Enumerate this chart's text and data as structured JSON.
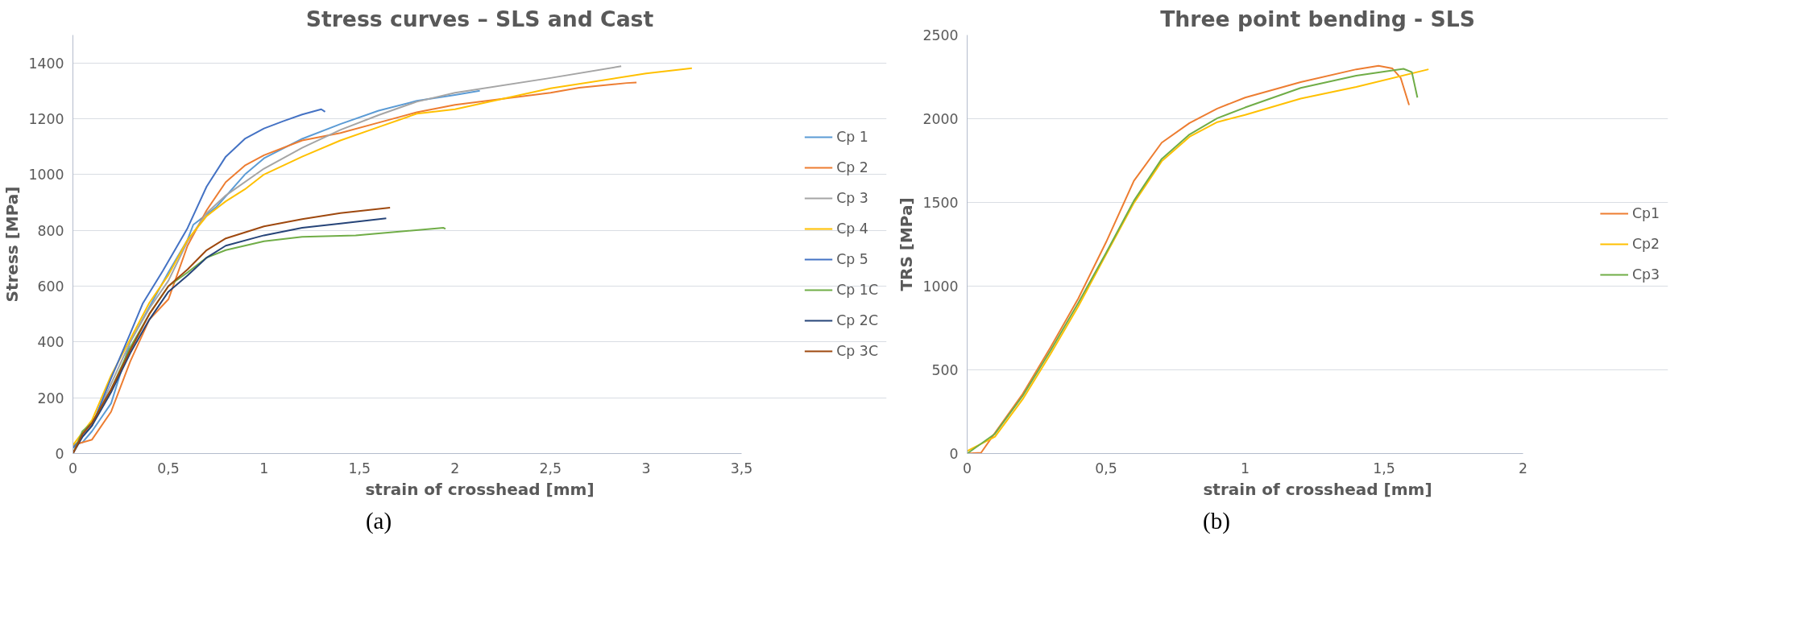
{
  "chart_data": [
    {
      "type": "line",
      "title": "Stress curves – SLS and Cast",
      "xlabel": "strain of crosshead [mm]",
      "ylabel": "Stress [MPa]",
      "annotations": [
        "(a)"
      ],
      "xlim": [
        0,
        3.5
      ],
      "ylim": [
        0,
        1500
      ],
      "xticks": [
        0,
        {
          "value": 0.5,
          "label": "0,5"
        },
        1,
        {
          "value": 1.5,
          "label": "1,5"
        },
        2,
        {
          "value": 2.5,
          "label": "2,5"
        },
        3,
        {
          "value": 3.5,
          "label": "3,5"
        }
      ],
      "yticks": [
        0,
        200,
        400,
        600,
        800,
        1000,
        1200,
        1400
      ],
      "grid": "y",
      "legend": "right",
      "marker": "none",
      "line_style": "solid",
      "series": [
        {
          "name": "Cp 1",
          "color": "#5b9bd5",
          "x": [
            0,
            0.05,
            0.1,
            0.2,
            0.3,
            0.5,
            0.6,
            0.63,
            0.75,
            0.9,
            1.0,
            1.2,
            1.4,
            1.6,
            1.8,
            2.0,
            2.13
          ],
          "values": [
            30,
            40,
            80,
            180,
            400,
            650,
            766,
            820,
            883,
            1000,
            1058,
            1128,
            1181,
            1229,
            1264,
            1285,
            1300
          ]
        },
        {
          "name": "Cp 2",
          "color": "#ed7d31",
          "x": [
            0,
            0.1,
            0.2,
            0.3,
            0.4,
            0.5,
            0.6,
            0.7,
            0.8,
            0.9,
            1.0,
            1.2,
            1.4,
            1.6,
            1.8,
            2.0,
            2.5,
            2.65,
            2.9,
            2.95
          ],
          "values": [
            30,
            50,
            150,
            330,
            480,
            553,
            745,
            872,
            973,
            1032,
            1069,
            1122,
            1149,
            1186,
            1223,
            1250,
            1293,
            1311,
            1328,
            1330
          ]
        },
        {
          "name": "Cp 3",
          "color": "#a5a5a5",
          "x": [
            0,
            0.1,
            0.2,
            0.3,
            0.4,
            0.5,
            0.6,
            0.7,
            0.8,
            1.0,
            1.2,
            1.4,
            1.6,
            1.8,
            2.0,
            2.5,
            2.87
          ],
          "values": [
            20,
            100,
            250,
            400,
            520,
            620,
            760,
            862,
            925,
            1021,
            1096,
            1160,
            1213,
            1261,
            1293,
            1346,
            1388
          ]
        },
        {
          "name": "Cp 4",
          "color": "#ffc000",
          "x": [
            0,
            0.1,
            0.2,
            0.3,
            0.4,
            0.5,
            0.6,
            0.7,
            0.8,
            0.9,
            1.0,
            1.2,
            1.4,
            1.6,
            1.8,
            2.0,
            2.5,
            3.0,
            3.24
          ],
          "values": [
            30,
            120,
            280,
            410,
            540,
            640,
            766,
            851,
            904,
            947,
            1000,
            1064,
            1122,
            1170,
            1218,
            1234,
            1309,
            1362,
            1381
          ]
        },
        {
          "name": "Cp 5",
          "color": "#4472c4",
          "x": [
            0,
            0.1,
            0.2,
            0.3,
            0.365,
            0.47,
            0.6,
            0.7,
            0.8,
            0.9,
            1.0,
            1.1,
            1.2,
            1.3,
            1.32
          ],
          "values": [
            20,
            100,
            270,
            430,
            537,
            654,
            808,
            957,
            1064,
            1128,
            1165,
            1191,
            1215,
            1234,
            1225
          ]
        },
        {
          "name": "Cp 1C",
          "color": "#70ad47",
          "x": [
            0,
            0.05,
            0.1,
            0.2,
            0.3,
            0.4,
            0.5,
            0.6,
            0.7,
            0.8,
            1.0,
            1.2,
            1.48,
            1.94,
            1.95
          ],
          "values": [
            0,
            80,
            110,
            230,
            380,
            500,
            600,
            649,
            702,
            729,
            761,
            777,
            782,
            809,
            805
          ]
        },
        {
          "name": "Cp 2C",
          "color": "#264478",
          "x": [
            0,
            0.05,
            0.1,
            0.2,
            0.3,
            0.4,
            0.5,
            0.6,
            0.7,
            0.8,
            1.0,
            1.2,
            1.4,
            1.64
          ],
          "values": [
            0,
            60,
            100,
            220,
            360,
            480,
            580,
            638,
            702,
            745,
            782,
            809,
            824,
            843
          ]
        },
        {
          "name": "Cp 3C",
          "color": "#9e480e",
          "x": [
            0,
            0.05,
            0.1,
            0.2,
            0.3,
            0.4,
            0.5,
            0.6,
            0.7,
            0.8,
            1.0,
            1.2,
            1.4,
            1.66
          ],
          "values": [
            0,
            70,
            110,
            230,
            370,
            500,
            600,
            660,
            729,
            771,
            814,
            840,
            862,
            881
          ]
        }
      ]
    },
    {
      "type": "line",
      "title": "Three point bending - SLS",
      "xlabel": "strain of crosshead [mm]",
      "ylabel": "TRS [MPa]",
      "annotations": [
        "(b)"
      ],
      "xlim": [
        0,
        2
      ],
      "ylim": [
        0,
        2500
      ],
      "xticks": [
        0,
        {
          "value": 0.5,
          "label": "0,5"
        },
        1,
        {
          "value": 1.5,
          "label": "1,5"
        },
        2
      ],
      "yticks": [
        0,
        500,
        1000,
        1500,
        2000,
        2500
      ],
      "grid": "y",
      "legend": "right",
      "marker": "none",
      "line_style": "solid",
      "series": [
        {
          "name": "Cp1",
          "color": "#ed7d31",
          "x": [
            0,
            0.05,
            0.1,
            0.2,
            0.3,
            0.4,
            0.5,
            0.6,
            0.7,
            0.8,
            0.9,
            1.0,
            1.2,
            1.4,
            1.48,
            1.53,
            1.56,
            1.59
          ],
          "values": [
            0,
            5,
            123,
            357,
            635,
            927,
            1263,
            1629,
            1857,
            1974,
            2061,
            2126,
            2219,
            2295,
            2316,
            2300,
            2243,
            2082
          ]
        },
        {
          "name": "Cp2",
          "color": "#ffc000",
          "x": [
            0,
            0.1,
            0.2,
            0.3,
            0.4,
            0.5,
            0.6,
            0.7,
            0.8,
            0.9,
            1.0,
            1.2,
            1.4,
            1.66
          ],
          "values": [
            15,
            100,
            325,
            595,
            880,
            1190,
            1497,
            1746,
            1892,
            1980,
            2023,
            2120,
            2190,
            2295
          ]
        },
        {
          "name": "Cp3",
          "color": "#70ad47",
          "x": [
            0,
            0.1,
            0.2,
            0.3,
            0.4,
            0.5,
            0.6,
            0.7,
            0.8,
            0.9,
            1.0,
            1.2,
            1.4,
            1.57,
            1.6,
            1.62
          ],
          "values": [
            0,
            118,
            345,
            615,
            900,
            1200,
            1510,
            1760,
            1906,
            2003,
            2067,
            2184,
            2257,
            2298,
            2278,
            2126
          ]
        }
      ]
    }
  ]
}
